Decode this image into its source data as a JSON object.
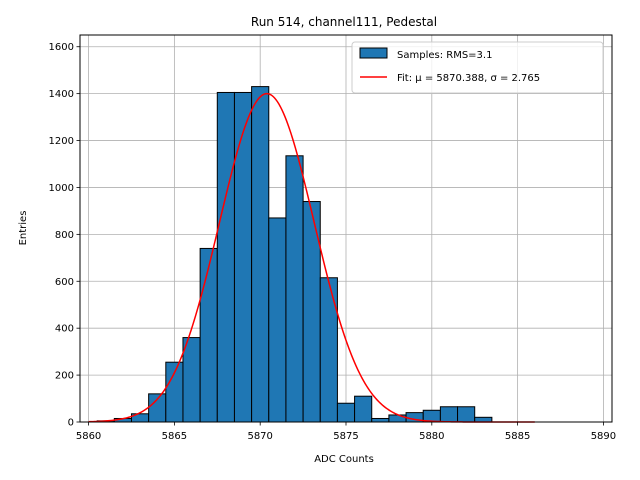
{
  "chart_data": {
    "type": "bar",
    "title": "Run 514, channel111, Pedestal",
    "xlabel": "ADC Counts",
    "ylabel": "Entries",
    "xlim": [
      5859.5,
      5890.5
    ],
    "ylim": [
      0,
      1650
    ],
    "xticks": [
      5860,
      5865,
      5870,
      5875,
      5880,
      5885,
      5890
    ],
    "yticks": [
      0,
      200,
      400,
      600,
      800,
      1000,
      1200,
      1400,
      1600
    ],
    "grid": true,
    "legend_position": "top-right",
    "bin_width": 1,
    "series": [
      {
        "name": "Samples: RMS=3.1",
        "type": "histogram",
        "color": "#1f77b4",
        "edgecolor": "#000000",
        "bins": [
          {
            "x": 5861,
            "value": 5
          },
          {
            "x": 5862,
            "value": 15
          },
          {
            "x": 5863,
            "value": 35
          },
          {
            "x": 5864,
            "value": 120
          },
          {
            "x": 5865,
            "value": 255
          },
          {
            "x": 5866,
            "value": 360
          },
          {
            "x": 5867,
            "value": 740
          },
          {
            "x": 5868,
            "value": 1405
          },
          {
            "x": 5869,
            "value": 1405
          },
          {
            "x": 5870,
            "value": 1430
          },
          {
            "x": 5871,
            "value": 870
          },
          {
            "x": 5872,
            "value": 1135
          },
          {
            "x": 5873,
            "value": 940
          },
          {
            "x": 5874,
            "value": 615
          },
          {
            "x": 5875,
            "value": 80
          },
          {
            "x": 5876,
            "value": 110
          },
          {
            "x": 5877,
            "value": 15
          },
          {
            "x": 5878,
            "value": 30
          },
          {
            "x": 5879,
            "value": 40
          },
          {
            "x": 5880,
            "value": 50
          },
          {
            "x": 5881,
            "value": 65
          },
          {
            "x": 5882,
            "value": 65
          },
          {
            "x": 5883,
            "value": 20
          }
        ]
      },
      {
        "name": "Fit: μ = 5870.388, σ = 2.765",
        "type": "line",
        "color": "#ff0000",
        "gaussian": {
          "mu": 5870.388,
          "sigma": 2.765,
          "amplitude": 1400
        },
        "x_range": [
          5860,
          5886
        ]
      }
    ]
  }
}
